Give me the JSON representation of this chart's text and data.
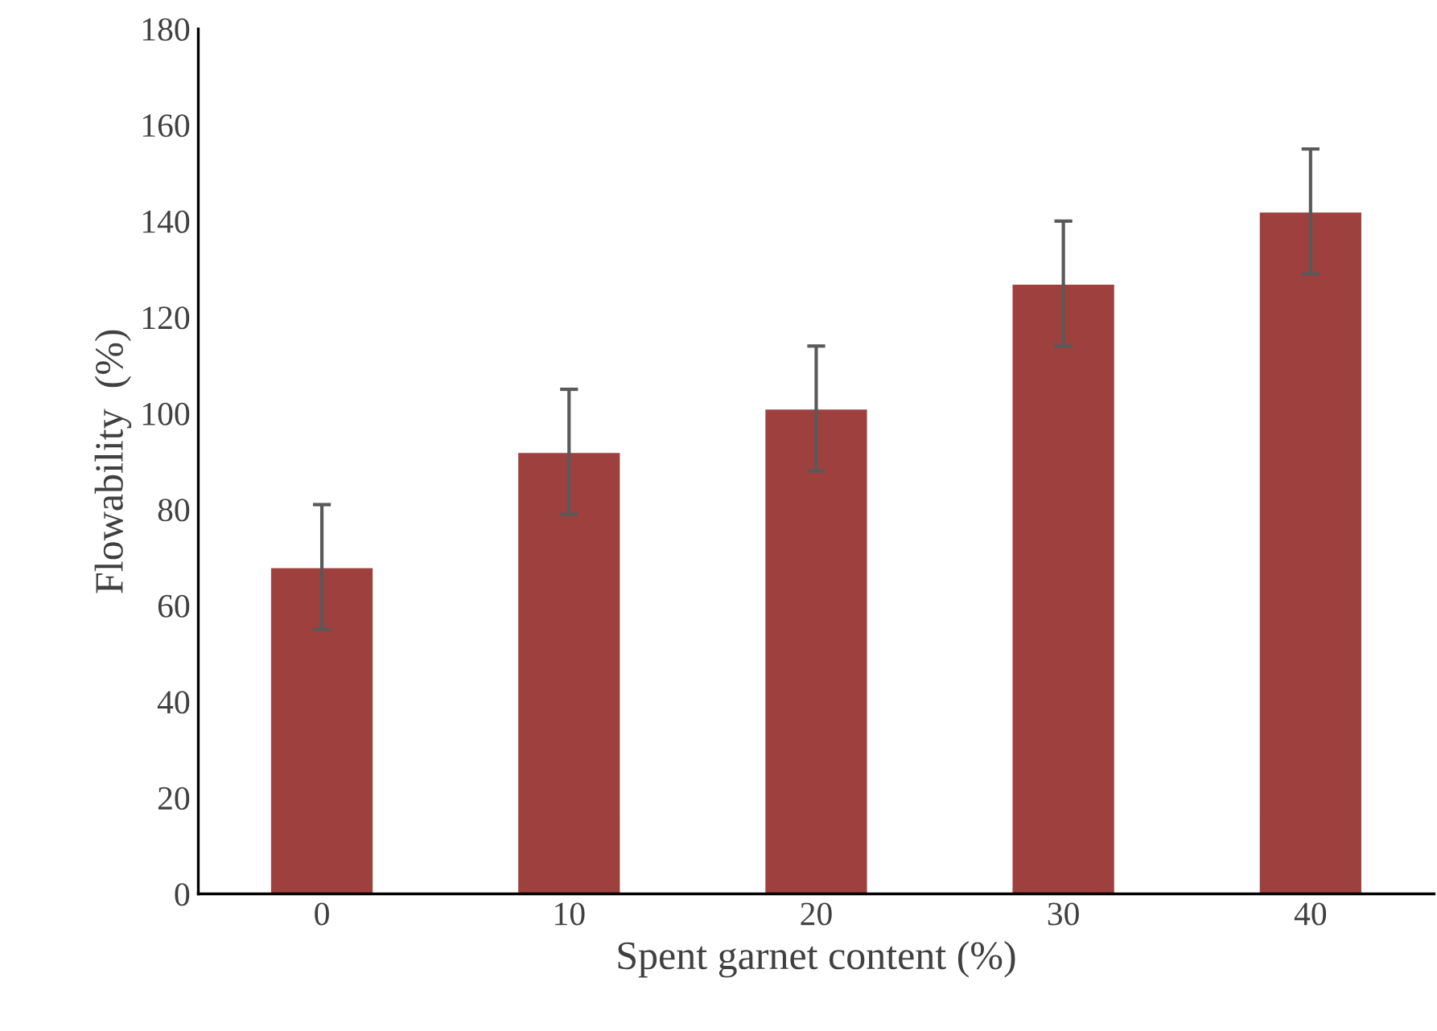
{
  "chart_data": {
    "type": "bar",
    "xlabel": "Spent garnet content (%)",
    "ylabel": "Flowability  (%)",
    "categories": [
      "0",
      "10",
      "20",
      "30",
      "40"
    ],
    "values": [
      68,
      92,
      101,
      127,
      142
    ],
    "errors": [
      13,
      13,
      13,
      13,
      13
    ],
    "color": "#9e413e",
    "ylim": [
      0,
      180
    ],
    "yticks": [
      0,
      20,
      40,
      60,
      80,
      100,
      120,
      140,
      160,
      180
    ],
    "grid": false,
    "legend": false
  }
}
